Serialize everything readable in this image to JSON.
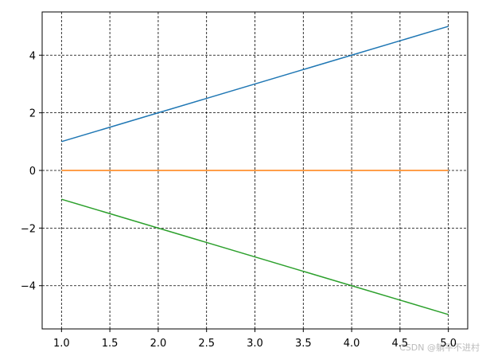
{
  "chart_data": {
    "type": "line",
    "x": [
      1,
      2,
      3,
      4,
      5
    ],
    "series": [
      {
        "color": "#1f77b4",
        "values": [
          1,
          2,
          3,
          4,
          5
        ]
      },
      {
        "color": "#ff7f0e",
        "values": [
          0,
          0,
          0,
          0,
          0
        ]
      },
      {
        "color": "#2ca02c",
        "values": [
          -1,
          -2,
          -3,
          -4,
          -5
        ]
      }
    ],
    "xlim": [
      0.8,
      5.2
    ],
    "ylim": [
      -5.5,
      5.5
    ],
    "xticks": [
      {
        "value": 1,
        "label": "1.0"
      },
      {
        "value": 1.5,
        "label": "1.5"
      },
      {
        "value": 2,
        "label": "2.0"
      },
      {
        "value": 2.5,
        "label": "2.5"
      },
      {
        "value": 3,
        "label": "3.0"
      },
      {
        "value": 3.5,
        "label": "3.5"
      },
      {
        "value": 4,
        "label": "4.0"
      },
      {
        "value": 4.5,
        "label": "4.5"
      },
      {
        "value": 5,
        "label": "5.0"
      }
    ],
    "yticks": [
      {
        "value": -4,
        "label": "−4"
      },
      {
        "value": -2,
        "label": "−2"
      },
      0,
      2,
      4
    ],
    "grid": true,
    "watermark": "CSDN @躺平不进村"
  }
}
